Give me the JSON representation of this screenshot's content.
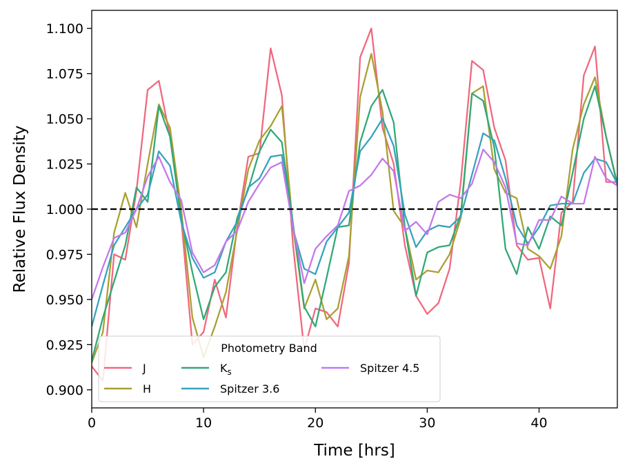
{
  "chart_data": {
    "type": "line",
    "title": "",
    "xlabel": "Time [hrs]",
    "ylabel": "Relative Flux Density",
    "xlim": [
      0,
      47
    ],
    "ylim": [
      0.89,
      1.11
    ],
    "xticks": [
      0,
      10,
      20,
      30,
      40
    ],
    "xtick_labels": [
      "0",
      "10",
      "20",
      "30",
      "40"
    ],
    "yticks": [
      0.9,
      0.925,
      0.95,
      0.975,
      1.0,
      1.025,
      1.05,
      1.075,
      1.1
    ],
    "ytick_labels": [
      "0.900",
      "0.925",
      "0.950",
      "0.975",
      "1.000",
      "1.025",
      "1.050",
      "1.075",
      "1.100"
    ],
    "reference_line": {
      "y": 1.0,
      "style": "dashed",
      "color": "#000000"
    },
    "legend": {
      "title": "Photometry Band",
      "placement": "lower-left",
      "columns": 3
    },
    "x": [
      0,
      1,
      2,
      3,
      4,
      5,
      6,
      7,
      8,
      9,
      10,
      11,
      12,
      13,
      14,
      15,
      16,
      17,
      18,
      19,
      20,
      21,
      22,
      23,
      24,
      25,
      26,
      27,
      28,
      29,
      30,
      31,
      32,
      33,
      34,
      35,
      36,
      37,
      38,
      39,
      40,
      41,
      42,
      43,
      44,
      45,
      46,
      47
    ],
    "series": [
      {
        "name": "J",
        "label_main": "J",
        "label_sub": "",
        "color": "#f0687e",
        "values": [
          0.913,
          0.905,
          0.975,
          0.972,
          1.01,
          1.066,
          1.071,
          1.04,
          0.995,
          0.925,
          0.932,
          0.961,
          0.94,
          0.99,
          1.029,
          1.031,
          1.089,
          1.063,
          0.98,
          0.922,
          0.945,
          0.943,
          0.935,
          0.97,
          1.084,
          1.1,
          1.045,
          1.025,
          0.98,
          0.952,
          0.942,
          0.948,
          0.967,
          1.015,
          1.082,
          1.077,
          1.045,
          1.027,
          0.98,
          0.972,
          0.973,
          0.945,
          0.998,
          1.004,
          1.074,
          1.09,
          1.015,
          1.015
        ]
      },
      {
        "name": "H",
        "label_main": "H",
        "label_sub": "",
        "color": "#aa9f32",
        "values": [
          0.915,
          0.932,
          0.987,
          1.009,
          0.99,
          1.025,
          1.058,
          1.045,
          1.0,
          0.94,
          0.918,
          0.935,
          0.954,
          0.988,
          1.022,
          1.038,
          1.046,
          1.057,
          0.99,
          0.945,
          0.961,
          0.939,
          0.945,
          0.974,
          1.062,
          1.086,
          1.054,
          0.999,
          0.99,
          0.961,
          0.966,
          0.965,
          0.975,
          0.995,
          1.064,
          1.068,
          1.022,
          1.009,
          1.006,
          0.978,
          0.974,
          0.967,
          0.985,
          1.033,
          1.058,
          1.073,
          1.04,
          1.013
        ]
      },
      {
        "name": "Ks",
        "label_main": "K",
        "label_sub": "s",
        "color": "#32a877",
        "values": [
          0.916,
          0.94,
          0.96,
          0.98,
          1.012,
          1.004,
          1.057,
          1.04,
          0.995,
          0.965,
          0.939,
          0.957,
          0.965,
          0.995,
          1.011,
          1.032,
          1.044,
          1.037,
          0.992,
          0.946,
          0.935,
          0.962,
          0.99,
          0.991,
          1.037,
          1.057,
          1.066,
          1.048,
          0.99,
          0.952,
          0.976,
          0.979,
          0.98,
          0.997,
          1.064,
          1.06,
          1.034,
          0.978,
          0.964,
          0.99,
          0.978,
          0.996,
          0.991,
          1.02,
          1.05,
          1.068,
          1.04,
          1.014
        ]
      },
      {
        "name": "Spitzer 3.6",
        "label_main": "Spitzer 3.6",
        "label_sub": "",
        "color": "#36a2be",
        "values": [
          0.935,
          0.958,
          0.98,
          0.99,
          1.0,
          1.008,
          1.032,
          1.024,
          0.993,
          0.973,
          0.962,
          0.965,
          0.982,
          0.993,
          1.012,
          1.017,
          1.029,
          1.03,
          0.989,
          0.967,
          0.964,
          0.982,
          0.99,
          0.998,
          1.032,
          1.04,
          1.05,
          1.035,
          0.997,
          0.979,
          0.988,
          0.991,
          0.99,
          0.996,
          1.019,
          1.042,
          1.038,
          1.017,
          0.991,
          0.981,
          0.99,
          1.002,
          1.003,
          1.003,
          1.02,
          1.028,
          1.026,
          1.014
        ]
      },
      {
        "name": "Spitzer 4.5",
        "label_main": "Spitzer 4.5",
        "label_sub": "",
        "color": "#c478ea",
        "values": [
          0.95,
          0.968,
          0.984,
          0.987,
          1.0,
          1.018,
          1.029,
          1.015,
          1.005,
          0.976,
          0.965,
          0.969,
          0.982,
          0.988,
          1.004,
          1.014,
          1.023,
          1.026,
          0.99,
          0.959,
          0.978,
          0.985,
          0.991,
          1.01,
          1.013,
          1.019,
          1.028,
          1.021,
          0.988,
          0.993,
          0.986,
          1.004,
          1.008,
          1.006,
          1.014,
          1.033,
          1.026,
          1.012,
          0.981,
          0.98,
          0.994,
          0.994,
          1.007,
          1.003,
          1.003,
          1.029,
          1.017,
          1.013
        ]
      }
    ]
  }
}
